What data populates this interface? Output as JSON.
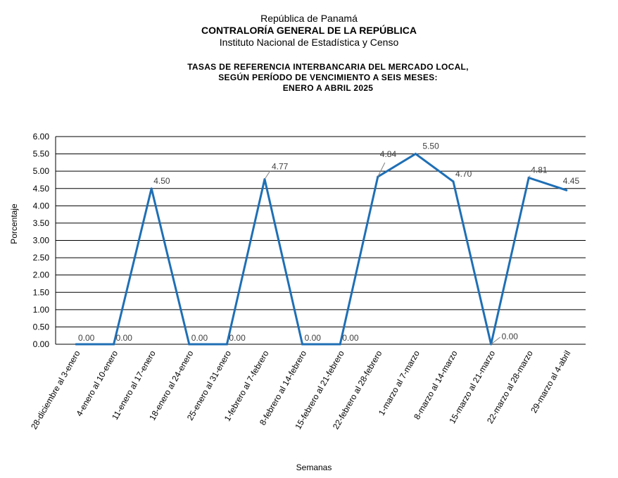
{
  "header": {
    "line1": "República de Panamá",
    "line2": "CONTRALORÍA GENERAL DE LA REPÚBLICA",
    "line3": "Instituto Nacional de Estadística y Censo"
  },
  "chart_data": {
    "type": "line",
    "title": [
      "TASAS DE REFERENCIA INTERBANCARIA DEL MERCADO LOCAL,",
      "SEGÚN PERÍODO DE VENCIMIENTO A SEIS MESES:",
      "ENERO A ABRIL 2025"
    ],
    "xlabel": "Semanas",
    "ylabel": "Porcentaje",
    "ylim": [
      0,
      6
    ],
    "yticks": [
      "0.00",
      "0.50",
      "1.00",
      "1.50",
      "2.00",
      "2.50",
      "3.00",
      "3.50",
      "4.00",
      "4.50",
      "5.00",
      "5.50",
      "6.00"
    ],
    "grid": true,
    "color": "#1f6fb5",
    "categories": [
      "28-diciembre al 3-enero",
      "4-enero al 10-enero",
      "11-enero al 17-enero",
      "18-enero al 24-enero",
      "25-enero al 31-enero",
      "1-febrero al 7-febrero",
      "8-febrero al 14-febrero",
      "15-febrero al 21-febrero",
      "22-febrero al 28-febrero",
      "1-marzo al 7-marzo",
      "8-marzo al 14-marzo",
      "15-marzo al 21-marzo",
      "22-marzo al 28-marzo",
      "29-marzo al 4-abril"
    ],
    "values": [
      0.0,
      0.0,
      4.5,
      0.0,
      0.0,
      4.77,
      0.0,
      0.0,
      4.84,
      5.5,
      4.7,
      0.0,
      4.81,
      4.45
    ],
    "data_labels": [
      "0.00",
      "0.00",
      "4.50",
      "0.00",
      "0.00",
      "4.77",
      "0.00",
      "0.00",
      "4.84",
      "5.50",
      "4.70",
      "0.00",
      "4.81",
      "4.45"
    ]
  }
}
